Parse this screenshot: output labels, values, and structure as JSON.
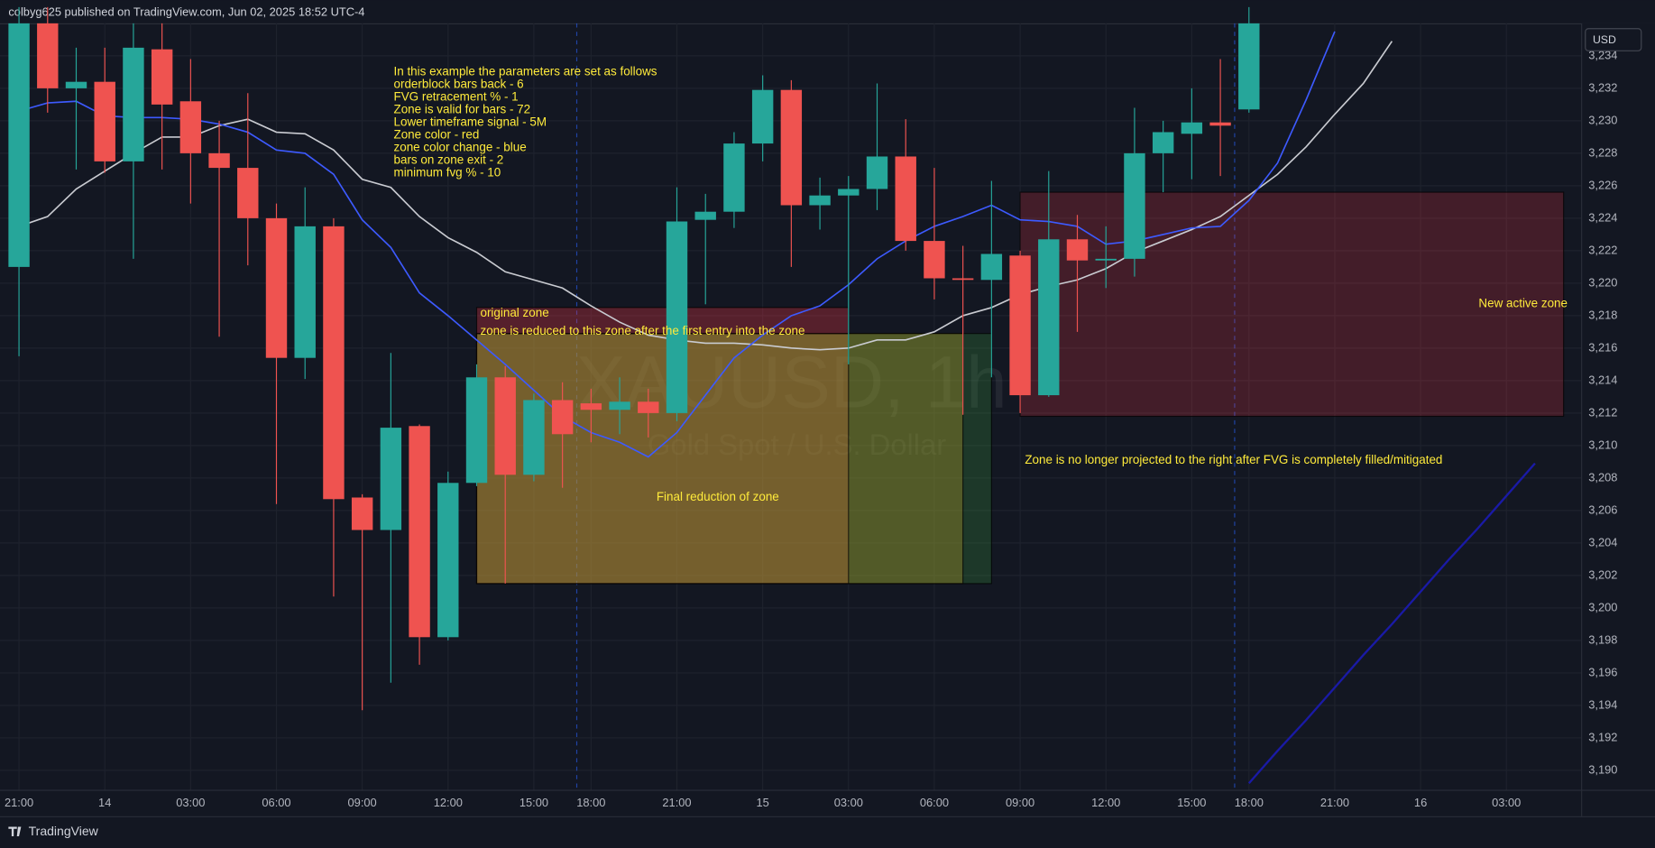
{
  "header": "colbyg625 published on TradingView.com, Jun 02, 2025 18:52 UTC-4",
  "footer": "TradingView",
  "currency_button": "USD",
  "chart_data": {
    "type": "candlestick",
    "watermark": "XAUUSD, 1h",
    "watermark_subtitle": "Gold Spot / U.S. Dollar",
    "up_color": "#26a69a",
    "down_color": "#ef5350",
    "grid": true,
    "categories": [
      "21:00",
      null,
      null,
      "14",
      null,
      null,
      "03:00",
      null,
      null,
      "06:00",
      null,
      null,
      "09:00",
      null,
      null,
      "12:00",
      null,
      null,
      "15:00",
      null,
      "18:00",
      null,
      null,
      "21:00",
      null,
      null,
      "15",
      null,
      null,
      "03:00",
      null,
      null,
      "06:00",
      null,
      null,
      "09:00",
      null,
      null,
      "12:00",
      null,
      null,
      "15:00",
      null,
      "18:00",
      null,
      null,
      "21:00",
      null,
      null,
      "16",
      null,
      null,
      "03:00",
      null
    ],
    "open": [
      3221.0,
      3236,
      3232,
      3232.4,
      3227.5,
      3234.4,
      3231.2,
      3228,
      3227.1,
      3224,
      3215.4,
      3223.5,
      3206.8,
      3204.8,
      3211.2,
      3198.2,
      3207.7,
      3214.2,
      3208.2,
      3212.8,
      3212.6,
      3212.2,
      3212.7,
      3212,
      3223.9,
      3224.4,
      3228.6,
      3231.9,
      3224.8,
      3225.4,
      3225.8,
      3227.8,
      3222.6,
      3220.3,
      3220.2,
      3221.7,
      3213.1,
      3222.7,
      3221.4,
      3221.5,
      3228,
      3229.2,
      3229.9,
      3230.7,
      null,
      null,
      null,
      null,
      null,
      null,
      null,
      null,
      null,
      null
    ],
    "high": [
      3237,
      3237,
      3234.5,
      3234.5,
      3236,
      3236,
      3233.8,
      3230,
      3231.7,
      3224.9,
      3225.9,
      3224,
      3207,
      3215.7,
      3211.3,
      3208.4,
      3215,
      3214.9,
      3213.2,
      3213.9,
      3213.5,
      3214.2,
      3213.5,
      3225.9,
      3225.5,
      3229.3,
      3232.8,
      3232.5,
      3226.5,
      3226.6,
      3232.3,
      3230.1,
      3227.1,
      3222.3,
      3226.3,
      3222,
      3226.9,
      3224.2,
      3223.5,
      3230.8,
      3230,
      3232,
      3233.8,
      3237,
      null,
      null,
      null,
      null,
      null,
      null,
      null,
      null,
      null,
      null
    ],
    "low": [
      3215.5,
      3230.5,
      3227,
      3226.8,
      3221.5,
      3227,
      3224.9,
      3216.7,
      3221.1,
      3206.4,
      3214.1,
      3200.7,
      3193.7,
      3195.4,
      3196.5,
      3198,
      3207.5,
      3201.5,
      3207.8,
      3207.4,
      3210.2,
      3210.7,
      3210.5,
      3211.5,
      3218.7,
      3223.4,
      3227.5,
      3221,
      3223.3,
      3215,
      3224.5,
      3222,
      3219,
      3211.9,
      3214.2,
      3212,
      3213,
      3217,
      3219.7,
      3220.4,
      3225.6,
      3226.4,
      3226.6,
      3230.5,
      null,
      null,
      null,
      null,
      null,
      null,
      null,
      null,
      null,
      null
    ],
    "close": [
      3236,
      3232,
      3232.4,
      3227.5,
      3234.5,
      3231,
      3228,
      3227.1,
      3224,
      3215.4,
      3223.5,
      3206.7,
      3204.8,
      3211.1,
      3198.2,
      3207.7,
      3214.2,
      3208.2,
      3212.8,
      3210.7,
      3212.2,
      3212.7,
      3212,
      3223.8,
      3224.4,
      3228.6,
      3231.9,
      3224.8,
      3225.4,
      3225.8,
      3227.8,
      3222.6,
      3220.3,
      3220.2,
      3221.8,
      3213.1,
      3222.7,
      3221.4,
      3221.5,
      3228,
      3229.3,
      3229.9,
      3229.7,
      3236,
      null,
      null,
      null,
      null,
      null,
      null,
      null,
      null,
      null,
      null
    ],
    "series": [
      {
        "color": "#c9cbd1",
        "values": [
          3223.5,
          3224.1,
          3225.8,
          3226.9,
          3228,
          3229,
          3229,
          3229.7,
          3230.1,
          3229.3,
          3229.2,
          3228.2,
          3226.4,
          3225.9,
          3224.1,
          3222.8,
          3221.9,
          3220.7,
          3220.2,
          3219.7,
          3218.6,
          3217.6,
          3216.8,
          3216.5,
          3216.3,
          3216.3,
          3216.2,
          3216,
          3215.9,
          3216,
          3216.5,
          3216.5,
          3217,
          3218,
          3218.5,
          3219.3,
          3219.8,
          3220.2,
          3220.9,
          3221.9,
          3222.6,
          3223.3,
          3224.1,
          3225.4,
          3226.7,
          3228.4,
          3230.4,
          3232.3,
          3234.9,
          null,
          null,
          null,
          null,
          null
        ]
      },
      {
        "color": "#3d5afe",
        "values": [
          3230.6,
          3231.1,
          3231.2,
          3230.3,
          3230.2,
          3230.2,
          3230.1,
          3229.8,
          3229.3,
          3228.2,
          3228,
          3226.7,
          3223.9,
          3222.2,
          3219.4,
          3218,
          3216.5,
          3215,
          3213.4,
          3211.8,
          3210.8,
          3210.2,
          3209.3,
          3210.8,
          3213.1,
          3215.4,
          3216.8,
          3218,
          3218.6,
          3219.9,
          3221.5,
          3222.6,
          3223.5,
          3224.1,
          3224.8,
          3223.9,
          3223.8,
          3223.5,
          3222.4,
          3222.6,
          3223,
          3223.4,
          3223.5,
          3225.1,
          3227.4,
          3231.3,
          3235.5,
          null,
          null,
          null,
          null,
          null,
          null,
          null
        ]
      },
      {
        "color": "#1a1aa6",
        "values": [
          null,
          null,
          null,
          null,
          null,
          null,
          null,
          null,
          null,
          null,
          null,
          null,
          null,
          null,
          null,
          null,
          null,
          null,
          null,
          null,
          null,
          null,
          null,
          null,
          null,
          null,
          null,
          null,
          null,
          null,
          null,
          null,
          null,
          null,
          null,
          null,
          null,
          null,
          null,
          null,
          null,
          null,
          null,
          3189.2,
          3191.2,
          3193.1,
          3195.1,
          3197.1,
          3199.0,
          3201.0,
          3203.0,
          3204.9,
          3206.9,
          3208.9
        ]
      }
    ],
    "zones": [
      {
        "x0": 16,
        "x1": 34,
        "y0": 3201.5,
        "y1": 3216.9,
        "color": "rgba(56,142,60,0.28)"
      },
      {
        "x0": 16,
        "x1": 33,
        "y0": 3201.5,
        "y1": 3216.9,
        "color": "rgba(205,170,40,0.30)"
      },
      {
        "x0": 16,
        "x1": 29,
        "y0": 3201.5,
        "y1": 3216.9,
        "color": "rgba(200,110,60,0.30)"
      },
      {
        "x0": 16,
        "x1": 29,
        "y0": 3216.9,
        "y1": 3218.5,
        "color": "rgba(242,54,69,0.30)"
      },
      {
        "x0": 35,
        "x1": 54,
        "y0": 3211.8,
        "y1": 3225.6,
        "color": "rgba(242,54,69,0.22)"
      }
    ],
    "annotations": {
      "original_zone": "original zone",
      "reduced_zone": "zone is reduced to this zone after the first entry into the zone",
      "final_reduction": "Final reduction of zone",
      "new_zone": "New active zone",
      "no_longer": "Zone is no longer projected to the right after FVG is completely filled/mitigated",
      "parameters": [
        "In this example the parameters are set as follows",
        "orderblock bars back - 6",
        "FVG retracement % - 1",
        "Zone is valid for bars - 72",
        "Lower timeframe signal - 5M",
        "Zone color - red",
        "zone color change - blue",
        "bars on zone exit - 2",
        "minimum fvg % - 10"
      ]
    },
    "ylim": [
      3188.8,
      3236.0
    ],
    "yticks": [
      {
        "value": 3190,
        "label": "3,190"
      },
      {
        "value": 3192,
        "label": "3,192"
      },
      {
        "value": 3194,
        "label": "3,194"
      },
      {
        "value": 3196,
        "label": "3,196"
      },
      {
        "value": 3198,
        "label": "3,198"
      },
      {
        "value": 3200,
        "label": "3,200"
      },
      {
        "value": 3202,
        "label": "3,202"
      },
      {
        "value": 3204,
        "label": "3,204"
      },
      {
        "value": 3206,
        "label": "3,206"
      },
      {
        "value": 3208,
        "label": "3,208"
      },
      {
        "value": 3210,
        "label": "3,210"
      },
      {
        "value": 3212,
        "label": "3,212"
      },
      {
        "value": 3214,
        "label": "3,214"
      },
      {
        "value": 3216,
        "label": "3,216"
      },
      {
        "value": 3218,
        "label": "3,218"
      },
      {
        "value": 3220,
        "label": "3,220"
      },
      {
        "value": 3222,
        "label": "3,222"
      },
      {
        "value": 3224,
        "label": "3,224"
      },
      {
        "value": 3226,
        "label": "3,226"
      },
      {
        "value": 3228,
        "label": "3,228"
      },
      {
        "value": 3230,
        "label": "3,230"
      },
      {
        "value": 3232,
        "label": "3,232"
      },
      {
        "value": 3234,
        "label": "3,234"
      }
    ]
  }
}
